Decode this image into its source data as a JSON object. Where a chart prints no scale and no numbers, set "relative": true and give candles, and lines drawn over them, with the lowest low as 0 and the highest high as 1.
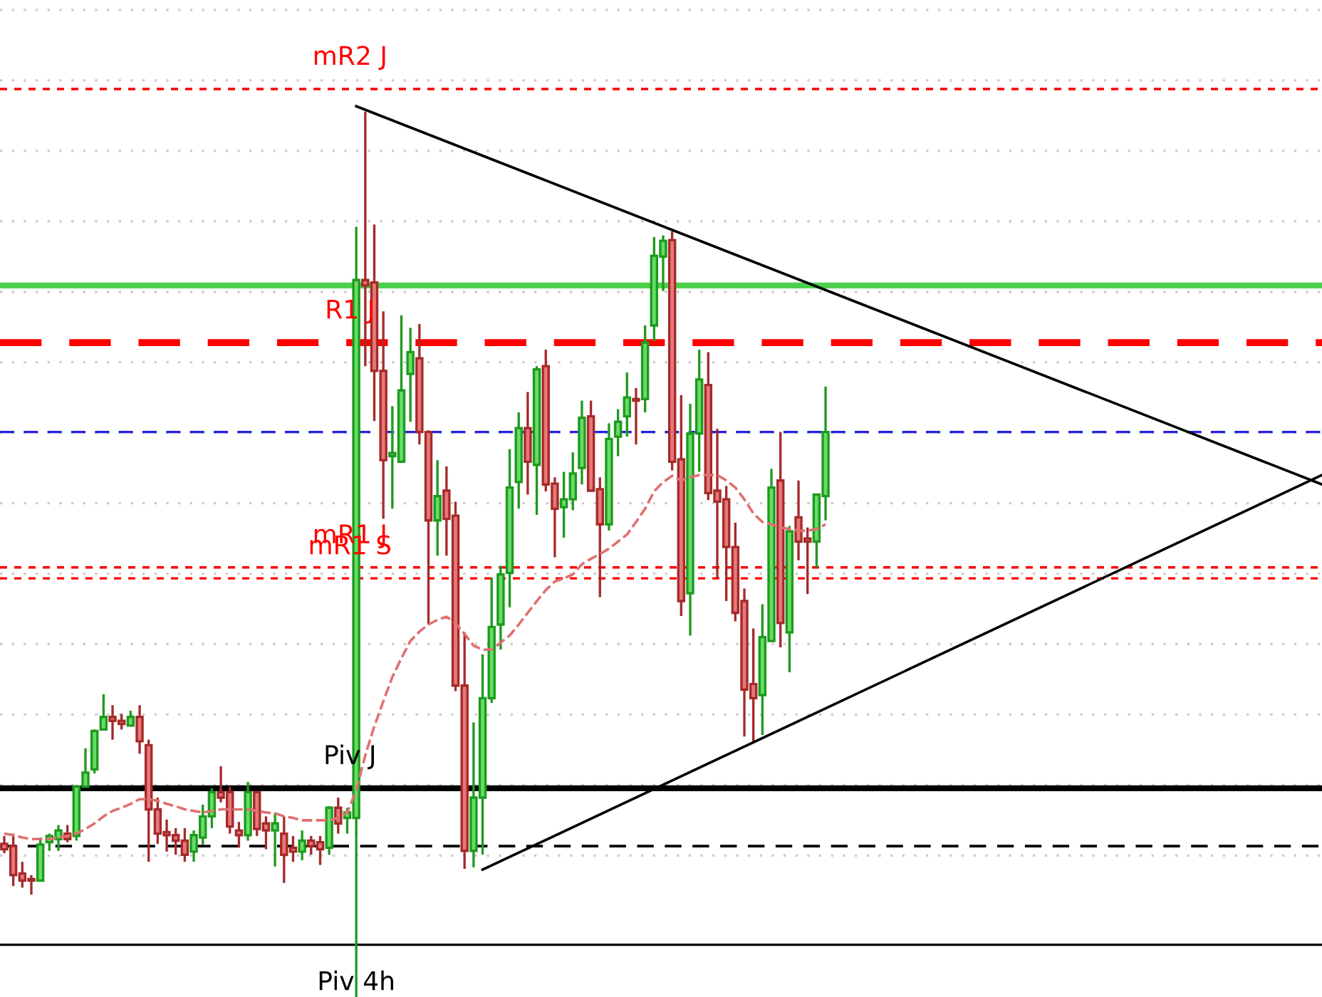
{
  "chart_data": {
    "type": "candlestick",
    "relative": true,
    "grid": "y",
    "categories": [
      null,
      null,
      null,
      null,
      null,
      null,
      null,
      null,
      null,
      null,
      null,
      null,
      null,
      null,
      null,
      null,
      null,
      null,
      null,
      null,
      null,
      null,
      null,
      null,
      null,
      null,
      null,
      null,
      null,
      null,
      null,
      null,
      null,
      null,
      null,
      null,
      null,
      null,
      null,
      null,
      null,
      null,
      null,
      null,
      null,
      null,
      null,
      null,
      null,
      null,
      null,
      null,
      null,
      null,
      null,
      null,
      null,
      null,
      null,
      null,
      null,
      null,
      null,
      null,
      null,
      null,
      null,
      null,
      null,
      null,
      null,
      null,
      null,
      null,
      null,
      null,
      null,
      null,
      null,
      null,
      null,
      null,
      null,
      null,
      null,
      null,
      null,
      null,
      null,
      null,
      null,
      null,
      null,
      null,
      null,
      null,
      null,
      null,
      null,
      null,
      null,
      null,
      null,
      null,
      null,
      null,
      null,
      null,
      null,
      null,
      null,
      null,
      null,
      null,
      null,
      null,
      null,
      null,
      null,
      null,
      null,
      null,
      null,
      null,
      null,
      null,
      null,
      null,
      null,
      null,
      null,
      null,
      null,
      null,
      null,
      null,
      null,
      null,
      null,
      null,
      null,
      null,
      null,
      null,
      null,
      null,
      null
    ],
    "ohlc": [
      [
        0.065,
        0.075,
        0.053,
        0.058
      ],
      [
        0.062,
        0.078,
        0.011,
        0.025
      ],
      [
        0.027,
        0.042,
        0.009,
        0.018
      ],
      [
        0.02,
        0.025,
        0,
        0.018
      ],
      [
        0.018,
        0.073,
        0.018,
        0.064
      ],
      [
        0.067,
        0.078,
        0.056,
        0.075
      ],
      [
        0.071,
        0.089,
        0.056,
        0.082
      ],
      [
        0.078,
        0.089,
        0.067,
        0.071
      ],
      [
        0.075,
        0.14,
        0.069,
        0.138
      ],
      [
        0.138,
        0.187,
        0.138,
        0.156
      ],
      [
        0.16,
        0.211,
        0.155,
        0.209
      ],
      [
        0.211,
        0.256,
        0.211,
        0.227
      ],
      [
        0.227,
        0.242,
        0.198,
        0.222
      ],
      [
        0.222,
        0.231,
        0.211,
        0.218
      ],
      [
        0.216,
        0.235,
        0.216,
        0.227
      ],
      [
        0.227,
        0.242,
        0.18,
        0.196
      ],
      [
        0.191,
        0.198,
        0.042,
        0.109
      ],
      [
        0.109,
        0.124,
        0.065,
        0.078
      ],
      [
        0.08,
        0.096,
        0.055,
        0.076
      ],
      [
        0.076,
        0.085,
        0.051,
        0.069
      ],
      [
        0.069,
        0.085,
        0.042,
        0.051
      ],
      [
        0.055,
        0.082,
        0.042,
        0.076
      ],
      [
        0.073,
        0.115,
        0.064,
        0.1
      ],
      [
        0.1,
        0.136,
        0.085,
        0.131
      ],
      [
        0.131,
        0.164,
        0.118,
        0.124
      ],
      [
        0.131,
        0.138,
        0.078,
        0.087
      ],
      [
        0.082,
        0.093,
        0.06,
        0.076
      ],
      [
        0.076,
        0.144,
        0.069,
        0.131
      ],
      [
        0.131,
        0.131,
        0.075,
        0.084
      ],
      [
        0.091,
        0.1,
        0.058,
        0.082
      ],
      [
        0.082,
        0.104,
        0.036,
        0.091
      ],
      [
        0.078,
        0.1,
        0.015,
        0.051
      ],
      [
        0.06,
        0.075,
        0.042,
        0.055
      ],
      [
        0.055,
        0.082,
        0.044,
        0.069
      ],
      [
        0.069,
        0.075,
        0.051,
        0.062
      ],
      [
        0.067,
        0.075,
        0.038,
        0.058
      ],
      [
        0.06,
        0.113,
        0.051,
        0.111
      ],
      [
        0.111,
        0.124,
        0.078,
        0.091
      ],
      [
        0.098,
        0.111,
        0.078,
        0.105
      ],
      [
        0.098,
        0.853,
        0.078,
        0.785
      ],
      [
        0.785,
        1,
        0.675,
        0.778
      ],
      [
        0.782,
        0.856,
        0.605,
        0.669
      ],
      [
        0.669,
        0.745,
        0.48,
        0.555
      ],
      [
        0.56,
        0.624,
        0.493,
        0.564
      ],
      [
        0.553,
        0.74,
        0.553,
        0.644
      ],
      [
        0.665,
        0.724,
        0.604,
        0.693
      ],
      [
        0.685,
        0.729,
        0.575,
        0.591
      ],
      [
        0.591,
        0.593,
        0.345,
        0.478
      ],
      [
        0.478,
        0.555,
        0.433,
        0.509
      ],
      [
        0.516,
        0.547,
        0.433,
        0.48
      ],
      [
        0.484,
        0.502,
        0.26,
        0.267
      ],
      [
        0.267,
        0.335,
        0.033,
        0.056
      ],
      [
        0.056,
        0.22,
        0.035,
        0.124
      ],
      [
        0.124,
        0.307,
        0.051,
        0.251
      ],
      [
        0.251,
        0.405,
        0.245,
        0.342
      ],
      [
        0.345,
        0.42,
        0.313,
        0.409
      ],
      [
        0.411,
        0.569,
        0.367,
        0.52
      ],
      [
        0.527,
        0.616,
        0.493,
        0.596
      ],
      [
        0.596,
        0.642,
        0.511,
        0.553
      ],
      [
        0.549,
        0.675,
        0.485,
        0.671
      ],
      [
        0.675,
        0.696,
        0.515,
        0.524
      ],
      [
        0.525,
        0.533,
        0.431,
        0.493
      ],
      [
        0.495,
        0.54,
        0.456,
        0.505
      ],
      [
        0.505,
        0.565,
        0.491,
        0.538
      ],
      [
        0.545,
        0.631,
        0.524,
        0.609
      ],
      [
        0.611,
        0.631,
        0.516,
        0.516
      ],
      [
        0.518,
        0.533,
        0.38,
        0.473
      ],
      [
        0.473,
        0.602,
        0.465,
        0.582
      ],
      [
        0.585,
        0.62,
        0.56,
        0.604
      ],
      [
        0.611,
        0.667,
        0.585,
        0.635
      ],
      [
        0.633,
        0.647,
        0.575,
        0.631
      ],
      [
        0.633,
        0.727,
        0.616,
        0.705
      ],
      [
        0.727,
        0.84,
        0.707,
        0.816
      ],
      [
        0.815,
        0.842,
        0.771,
        0.835
      ],
      [
        0.836,
        0.847,
        0.542,
        0.553
      ],
      [
        0.556,
        0.638,
        0.356,
        0.375
      ],
      [
        0.385,
        0.627,
        0.331,
        0.589
      ],
      [
        0.589,
        0.696,
        0.54,
        0.658
      ],
      [
        0.651,
        0.693,
        0.504,
        0.513
      ],
      [
        0.516,
        0.595,
        0.404,
        0.502
      ],
      [
        0.505,
        0.522,
        0.375,
        0.444
      ],
      [
        0.444,
        0.475,
        0.349,
        0.36
      ],
      [
        0.375,
        0.391,
        0.202,
        0.262
      ],
      [
        0.269,
        0.34,
        0.196,
        0.251
      ],
      [
        0.255,
        0.371,
        0.204,
        0.329
      ],
      [
        0.324,
        0.544,
        0.324,
        0.52
      ],
      [
        0.529,
        0.591,
        0.316,
        0.347
      ],
      [
        0.335,
        0.471,
        0.284,
        0.464
      ],
      [
        0.482,
        0.529,
        0.427,
        0.451
      ],
      [
        0.455,
        0.469,
        0.384,
        0.451
      ],
      [
        0.451,
        0.511,
        0.418,
        0.511
      ],
      [
        0.509,
        0.649,
        0.478,
        0.591
      ],
      null,
      null,
      null,
      null,
      null,
      null,
      null,
      null,
      null,
      null,
      null,
      null,
      null,
      null,
      null,
      null,
      null,
      null,
      null,
      null,
      null,
      null,
      null,
      null,
      null,
      null,
      null,
      null,
      null,
      null,
      null,
      null,
      null,
      null,
      null,
      null,
      null,
      null,
      null,
      null,
      null,
      null,
      null,
      null,
      null,
      null,
      null,
      null,
      null,
      null,
      null,
      null,
      null,
      null,
      null
    ],
    "series": [
      {
        "type": "line",
        "color": "#e07070",
        "line_style": "dashed",
        "values": [
          0.078,
          0.076,
          0.073,
          0.071,
          0.071,
          0.071,
          0.073,
          0.075,
          0.078,
          0.084,
          0.091,
          0.1,
          0.107,
          0.111,
          0.116,
          0.122,
          0.122,
          0.12,
          0.116,
          0.113,
          0.109,
          0.107,
          0.105,
          0.107,
          0.109,
          0.109,
          0.109,
          0.109,
          0.107,
          0.105,
          0.104,
          0.1,
          0.098,
          0.095,
          0.095,
          0.095,
          0.095,
          0.098,
          0.105,
          0.133,
          0.178,
          0.215,
          0.247,
          0.278,
          0.302,
          0.324,
          0.336,
          0.345,
          0.351,
          0.355,
          0.347,
          0.333,
          0.318,
          0.313,
          0.313,
          0.322,
          0.331,
          0.345,
          0.36,
          0.375,
          0.389,
          0.4,
          0.404,
          0.409,
          0.422,
          0.429,
          0.435,
          0.442,
          0.451,
          0.46,
          0.476,
          0.493,
          0.515,
          0.527,
          0.535,
          0.529,
          0.533,
          0.536,
          0.536,
          0.536,
          0.529,
          0.52,
          0.505,
          0.487,
          0.476,
          0.473,
          0.469,
          0.467,
          0.465,
          0.465,
          0.467,
          0.473,
          null,
          null,
          null,
          null,
          null,
          null,
          null,
          null,
          null,
          null,
          null,
          null,
          null,
          null,
          null,
          null,
          null,
          null,
          null,
          null,
          null,
          null,
          null,
          null,
          null,
          null,
          null,
          null,
          null,
          null,
          null,
          null,
          null,
          null,
          null,
          null,
          null,
          null,
          null,
          null,
          null,
          null,
          null,
          null,
          null,
          null,
          null,
          null,
          null,
          null,
          null,
          null,
          null,
          null,
          null
        ]
      },
      {
        "type": "line",
        "color": "#000000",
        "line_style": "solid",
        "values": [
          null,
          null,
          null,
          null,
          null,
          null,
          null,
          null,
          null,
          null,
          null,
          null,
          null,
          null,
          null,
          null,
          null,
          null,
          null,
          null,
          null,
          null,
          null,
          null,
          null,
          null,
          null,
          null,
          null,
          null,
          null,
          null,
          null,
          null,
          null,
          null,
          null,
          null,
          null,
          1.007,
          null,
          null,
          null,
          null,
          null,
          null,
          null,
          null,
          null,
          null,
          null,
          null,
          null,
          null,
          null,
          null,
          null,
          null,
          null,
          null,
          null,
          null,
          null,
          null,
          null,
          null,
          null,
          null,
          null,
          null,
          null,
          null,
          null,
          null,
          null,
          null,
          null,
          null,
          null,
          null,
          null,
          null,
          null,
          null,
          null,
          null,
          null,
          null,
          null,
          null,
          null,
          null,
          null,
          null,
          null,
          null,
          null,
          null,
          null,
          null,
          null,
          null,
          null,
          null,
          null,
          null,
          null,
          null,
          null,
          null,
          null,
          null,
          null,
          null,
          null,
          null,
          null,
          null,
          null,
          null,
          null,
          null,
          null,
          null,
          null,
          null,
          null,
          null,
          null,
          null,
          null,
          null,
          null,
          null,
          null,
          null,
          null,
          null,
          null,
          null,
          null,
          null,
          null,
          null,
          null,
          null,
          0.524
        ]
      },
      {
        "type": "line",
        "color": "#000000",
        "line_style": "solid",
        "values": [
          null,
          null,
          null,
          null,
          null,
          null,
          null,
          null,
          null,
          null,
          null,
          null,
          null,
          null,
          null,
          null,
          null,
          null,
          null,
          null,
          null,
          null,
          null,
          null,
          null,
          null,
          null,
          null,
          null,
          null,
          null,
          null,
          null,
          null,
          null,
          null,
          null,
          null,
          null,
          null,
          null,
          null,
          null,
          null,
          null,
          null,
          null,
          null,
          null,
          null,
          null,
          null,
          null,
          0.032,
          null,
          null,
          null,
          null,
          null,
          null,
          null,
          null,
          null,
          null,
          null,
          null,
          null,
          null,
          null,
          null,
          null,
          null,
          null,
          null,
          null,
          null,
          null,
          null,
          null,
          null,
          null,
          null,
          null,
          null,
          null,
          null,
          null,
          null,
          null,
          null,
          null,
          null,
          null,
          null,
          null,
          null,
          null,
          null,
          null,
          null,
          null,
          null,
          null,
          null,
          null,
          null,
          null,
          null,
          null,
          null,
          null,
          null,
          null,
          null,
          null,
          null,
          null,
          null,
          null,
          null,
          null,
          null,
          null,
          null,
          null,
          null,
          null,
          null,
          null,
          null,
          null,
          null,
          null,
          null,
          null,
          null,
          null,
          null,
          null,
          null,
          null,
          null,
          null,
          null,
          null,
          null,
          0.536
        ]
      }
    ],
    "ref_lines": [
      {
        "axis": "y",
        "value": 1.029,
        "label": "mR2 J",
        "color": "#ff0000",
        "line_style": "dotted"
      },
      {
        "axis": "y",
        "value": 0.778,
        "color": "#4cd04c",
        "line_style": "solid"
      },
      {
        "axis": "y",
        "value": 0.705,
        "label": "R1 J",
        "color": "#ff0000",
        "line_style": "dashed"
      },
      {
        "axis": "y",
        "value": 0.591,
        "color": "#2222dd",
        "line_style": "dashed"
      },
      {
        "axis": "y",
        "value": 0.418,
        "label": "mR1 J",
        "color": "#ff0000",
        "line_style": "dotted"
      },
      {
        "axis": "y",
        "value": 0.404,
        "label": "mR1 S",
        "color": "#ff0000",
        "line_style": "dotted"
      },
      {
        "axis": "y",
        "value": 0.136,
        "label": "Piv J",
        "color": "#000000",
        "line_style": "solid"
      },
      {
        "axis": "y",
        "value": 0.062,
        "color": "#000000",
        "line_style": "dashed"
      },
      {
        "axis": "y",
        "value": -0.064,
        "color": "#000000",
        "line_style": "solid"
      }
    ],
    "annotations": [
      "Piv 4h"
    ]
  }
}
